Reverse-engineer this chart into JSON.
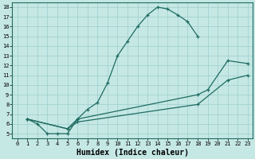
{
  "xlabel": "Humidex (Indice chaleur)",
  "bg_color": "#c5e8e5",
  "line_color": "#1e6b60",
  "grid_color": "#9ecece",
  "xlim": [
    -0.5,
    23.5
  ],
  "ylim": [
    4.5,
    18.5
  ],
  "yticks": [
    5,
    6,
    7,
    8,
    9,
    10,
    11,
    12,
    13,
    14,
    15,
    16,
    17,
    18
  ],
  "xticks": [
    0,
    1,
    2,
    3,
    4,
    5,
    6,
    7,
    8,
    9,
    10,
    11,
    12,
    13,
    14,
    15,
    16,
    17,
    18,
    19,
    20,
    21,
    22,
    23
  ],
  "curve1_x": [
    1,
    2,
    3,
    4,
    5,
    6,
    7,
    8,
    9,
    10,
    11,
    12,
    13,
    14,
    15,
    16,
    17,
    18
  ],
  "curve1_y": [
    6.5,
    6.0,
    5.0,
    5.0,
    5.0,
    6.5,
    7.5,
    8.2,
    10.2,
    13.0,
    14.5,
    16.0,
    17.2,
    18.0,
    17.8,
    17.2,
    16.5,
    15.0
  ],
  "curve2_x": [
    1,
    5,
    6,
    18,
    19,
    21,
    23
  ],
  "curve2_y": [
    6.5,
    5.5,
    6.5,
    9.0,
    9.5,
    12.5,
    12.2
  ],
  "curve3_x": [
    1,
    5,
    6,
    18,
    21,
    23
  ],
  "curve3_y": [
    6.5,
    5.5,
    6.2,
    8.0,
    10.5,
    11.0
  ],
  "tick_fontsize": 5.0,
  "xlabel_fontsize": 7.0
}
